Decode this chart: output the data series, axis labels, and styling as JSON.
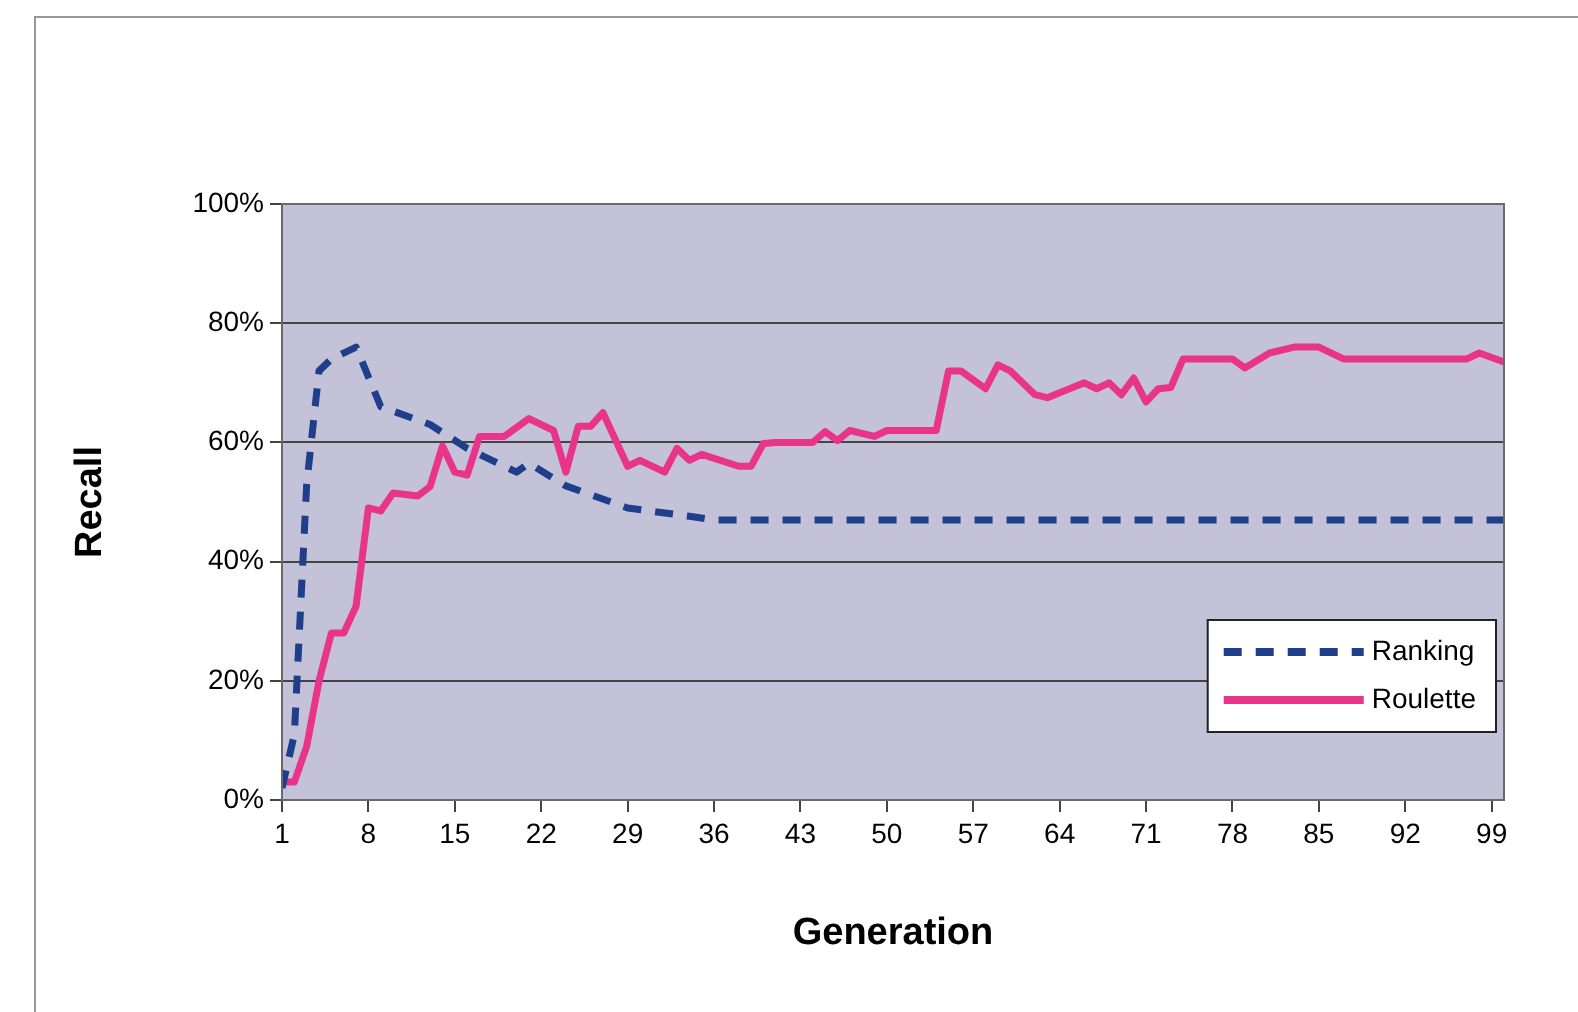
{
  "chart_data": {
    "type": "line",
    "xlabel": "Generation",
    "ylabel": "Recall",
    "xlim": [
      1,
      100
    ],
    "xticks": [
      1,
      8,
      15,
      22,
      29,
      36,
      43,
      50,
      57,
      64,
      71,
      78,
      85,
      92,
      99
    ],
    "ylim": [
      0,
      100
    ],
    "yticks": [
      {
        "value": 0,
        "label": "0%"
      },
      {
        "value": 20,
        "label": "20%"
      },
      {
        "value": 40,
        "label": "40%"
      },
      {
        "value": 60,
        "label": "60%"
      },
      {
        "value": 80,
        "label": "80%"
      },
      {
        "value": 100,
        "label": "100%"
      }
    ],
    "grid": "y",
    "legend": "bottom right",
    "marker": "none",
    "series": [
      {
        "name": "Ranking",
        "color": "#1f3f8a",
        "line_style": "dashed",
        "x": [
          1,
          2,
          3,
          4,
          5,
          7,
          9,
          13,
          16,
          20,
          21,
          24,
          29,
          34,
          36,
          50,
          70,
          100
        ],
        "values": [
          2,
          11,
          53,
          72,
          74,
          76,
          66,
          63,
          59,
          55,
          56.5,
          52.7,
          49,
          47.6,
          47,
          47,
          47,
          47
        ]
      },
      {
        "name": "Roulette",
        "color": "#e8348a",
        "line_style": "solid",
        "x": [
          1,
          2,
          3,
          4,
          5,
          6,
          7,
          8,
          9,
          10,
          12,
          13,
          14,
          15,
          16,
          17,
          19,
          21,
          23,
          24,
          25,
          26,
          27,
          29,
          30,
          32,
          33,
          34,
          35,
          38,
          39,
          40,
          41,
          44,
          45,
          46,
          47,
          49,
          50,
          54,
          55,
          56,
          58,
          59,
          60,
          62,
          63,
          66,
          67,
          68,
          69,
          70,
          71,
          72,
          73,
          74,
          78,
          79,
          81,
          83,
          85,
          87,
          97,
          98,
          100
        ],
        "values": [
          3,
          3,
          9,
          20,
          28,
          28,
          32.5,
          49,
          48.5,
          51.5,
          51,
          52.6,
          59.4,
          55,
          54.5,
          61,
          61,
          64,
          62,
          55,
          62.7,
          62.7,
          65,
          56,
          57,
          55,
          59,
          57,
          58,
          56,
          56,
          59.8,
          60,
          60,
          61.8,
          60.3,
          62,
          61,
          62,
          62,
          72,
          72,
          69,
          73,
          72,
          68,
          67.5,
          70,
          69,
          70,
          68,
          70.8,
          66.8,
          69,
          69.2,
          74,
          74,
          72.5,
          75,
          76,
          76,
          74,
          74,
          75,
          73.5
        ]
      }
    ]
  }
}
